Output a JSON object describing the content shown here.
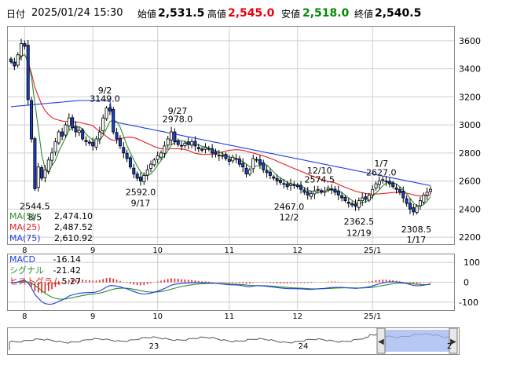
{
  "header": {
    "date_label": "日付",
    "datetime": "2025/01/24 15:30",
    "open_label": "始値",
    "open": "2,531.5",
    "high_label": "高値",
    "high": "2,545.0",
    "low_label": "安値",
    "low": "2,518.0",
    "close_label": "終値",
    "close": "2,540.5"
  },
  "colors": {
    "high": "#e6000b",
    "low": "#008a00",
    "ma5": "#2e8b2e",
    "ma25": "#e02020",
    "ma75": "#1f3fe0",
    "candle_up": "#ffffff",
    "candle_down": "#1a3fc8",
    "macd": "#1f3fe0",
    "signal": "#2e8b2e",
    "histogram": "#e02020"
  },
  "chart_data": [
    {
      "type": "candlestick",
      "panel": "price",
      "ylim": [
        2150,
        3700
      ],
      "yticks": [
        2200,
        2400,
        2600,
        2800,
        3000,
        3200,
        3400,
        3600
      ],
      "x_month_labels": [
        "8",
        "9",
        "10",
        "11",
        "12",
        "25/1"
      ],
      "legend": [
        {
          "name": "MA(5)",
          "value": "2,474.10"
        },
        {
          "name": "MA(25)",
          "value": "2,487.52"
        },
        {
          "name": "MA(75)",
          "value": "2,610.92"
        }
      ],
      "annotations": [
        {
          "value": "2544.5",
          "date": "8/5"
        },
        {
          "value": "3149.0",
          "date": "9/2"
        },
        {
          "value": "2592.0",
          "date": "9/17"
        },
        {
          "value": "2978.0",
          "date": "9/27"
        },
        {
          "value": "2467.0",
          "date": "12/2"
        },
        {
          "value": "2574.5",
          "date": "12/10"
        },
        {
          "value": "2362.5",
          "date": "12/19"
        },
        {
          "value": "2627.0",
          "date": "1/7"
        },
        {
          "value": "2308.5",
          "date": "1/17"
        }
      ],
      "close_series": [
        3450,
        3420,
        3500,
        3580,
        3560,
        3180,
        2900,
        2544.5,
        2700,
        2620,
        2680,
        2750,
        2800,
        2880,
        2950,
        2920,
        3000,
        3050,
        2980,
        2950,
        2960,
        2900,
        2880,
        2870,
        2850,
        2900,
        2950,
        3050,
        3120,
        3100,
        2950,
        2900,
        2850,
        2800,
        2760,
        2700,
        2650,
        2620,
        2600,
        2640,
        2680,
        2720,
        2750,
        2780,
        2800,
        2850,
        2900,
        2950,
        2880,
        2860,
        2850,
        2870,
        2860,
        2880,
        2850,
        2830,
        2820,
        2840,
        2830,
        2800,
        2790,
        2780,
        2780,
        2760,
        2740,
        2770,
        2760,
        2720,
        2700,
        2650,
        2680,
        2760,
        2750,
        2720,
        2680,
        2660,
        2640,
        2620,
        2600,
        2590,
        2580,
        2560,
        2580,
        2570,
        2560,
        2540,
        2520,
        2500,
        2510,
        2530,
        2540,
        2520,
        2530,
        2550,
        2540,
        2520,
        2500,
        2480,
        2460,
        2440,
        2430,
        2420,
        2460,
        2480,
        2470,
        2500,
        2540,
        2580,
        2600,
        2610,
        2600,
        2580,
        2560,
        2540,
        2520,
        2480,
        2440,
        2400,
        2380,
        2420,
        2460,
        2500,
        2520,
        2540.5
      ]
    },
    {
      "type": "line",
      "panel": "macd",
      "ylim": [
        -140,
        140
      ],
      "yticks": [
        100,
        0,
        -100
      ],
      "legend": [
        {
          "name": "MACD",
          "value": "-16.14"
        },
        {
          "name": "シグナル",
          "value": "-21.42"
        },
        {
          "name": "ヒストグラム",
          "value": "5.27"
        }
      ]
    }
  ],
  "navigator": {
    "labels": [
      "23",
      "24",
      "2"
    ]
  }
}
